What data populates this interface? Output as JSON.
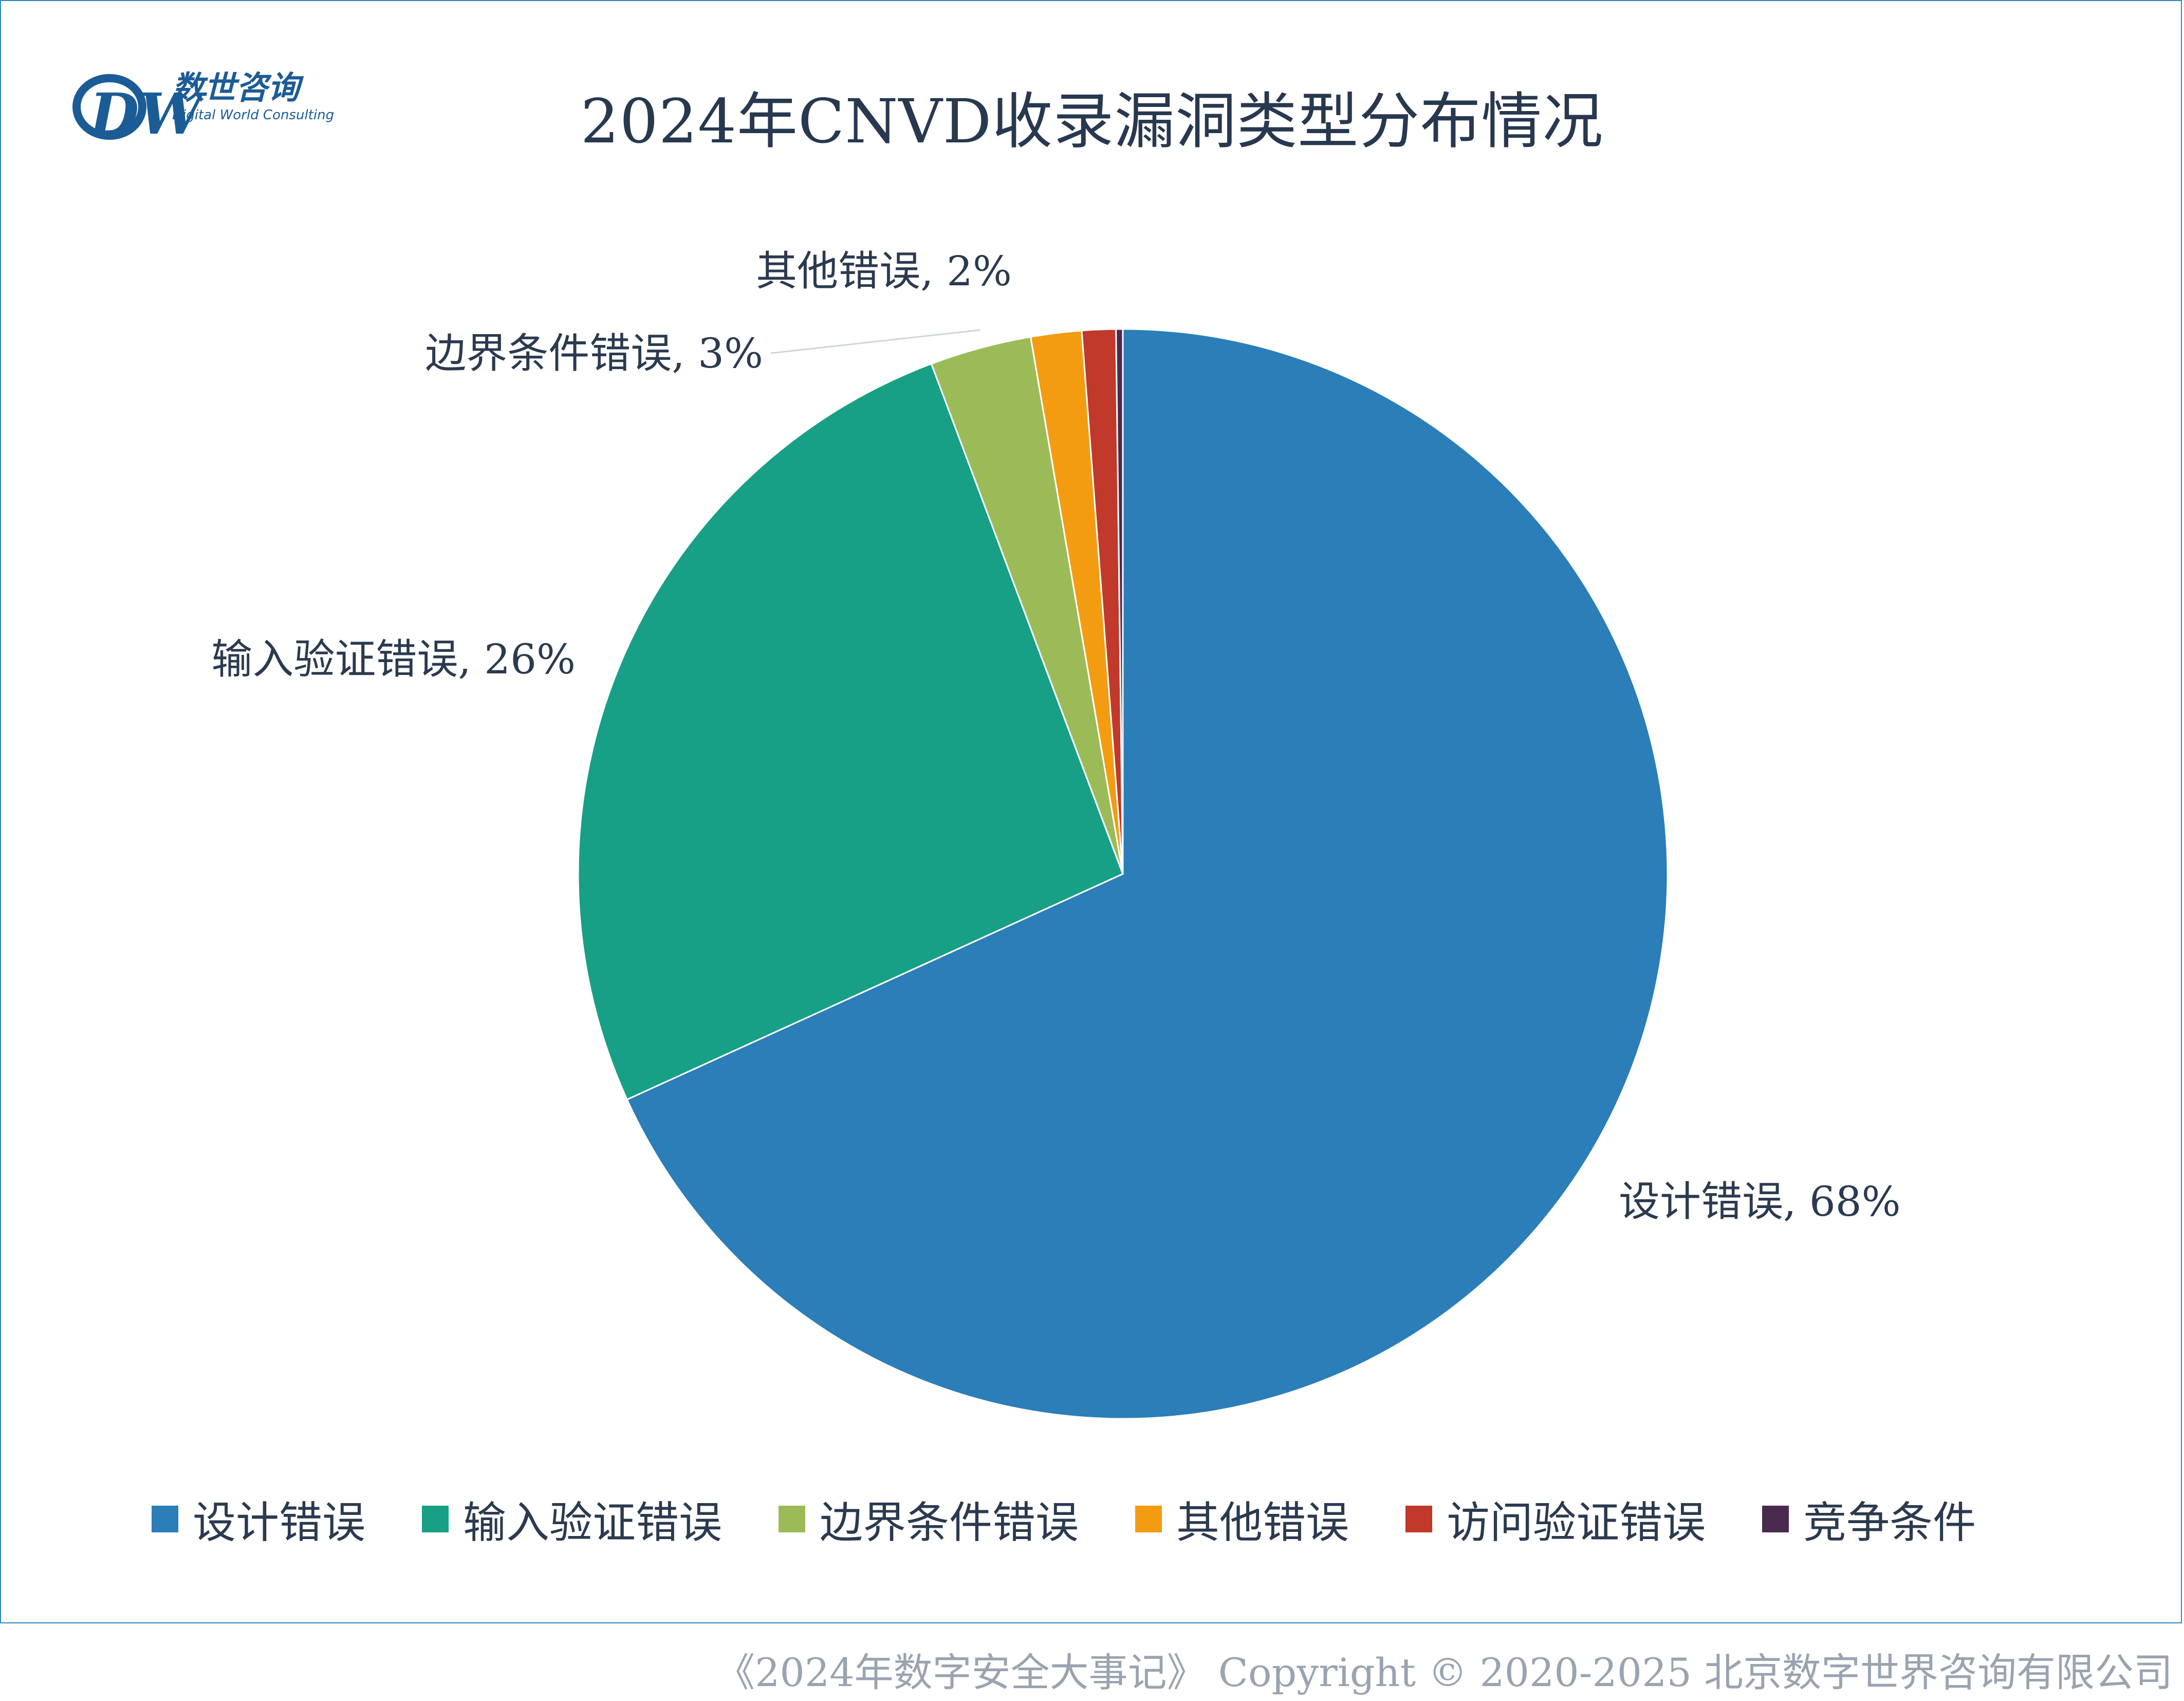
{
  "logo": {
    "text_cn": "数世咨询",
    "text_en": "Digital World Consulting",
    "letters": "DW",
    "brand_color": "#1c5c96"
  },
  "chart_data": {
    "type": "pie",
    "title": "2024年CNVD收录漏洞类型分布情况",
    "legend_position": "bottom",
    "slices": [
      {
        "name": "设计错误",
        "value": 68,
        "label": "设计错误, 68%",
        "color": "#2b7eb8"
      },
      {
        "name": "输入验证错误",
        "value": 26,
        "label": "输入验证错误, 26%",
        "color": "#17a085"
      },
      {
        "name": "边界条件错误",
        "value": 3,
        "label": "边界条件错误, 3%",
        "color": "#9bbb59"
      },
      {
        "name": "其他错误",
        "value": 1.5,
        "label": "其他错误, 2%",
        "color": "#f39c12"
      },
      {
        "name": "访问验证错误",
        "value": 1.0,
        "label": "",
        "color": "#c0392b"
      },
      {
        "name": "竞争条件",
        "value": 0.2,
        "label": "",
        "color": "#4a2a4f"
      }
    ]
  },
  "footer": {
    "copyright": "《2024年数字安全大事记》 Copyright © 2020-2025 北京数字世界咨询有限公司"
  }
}
